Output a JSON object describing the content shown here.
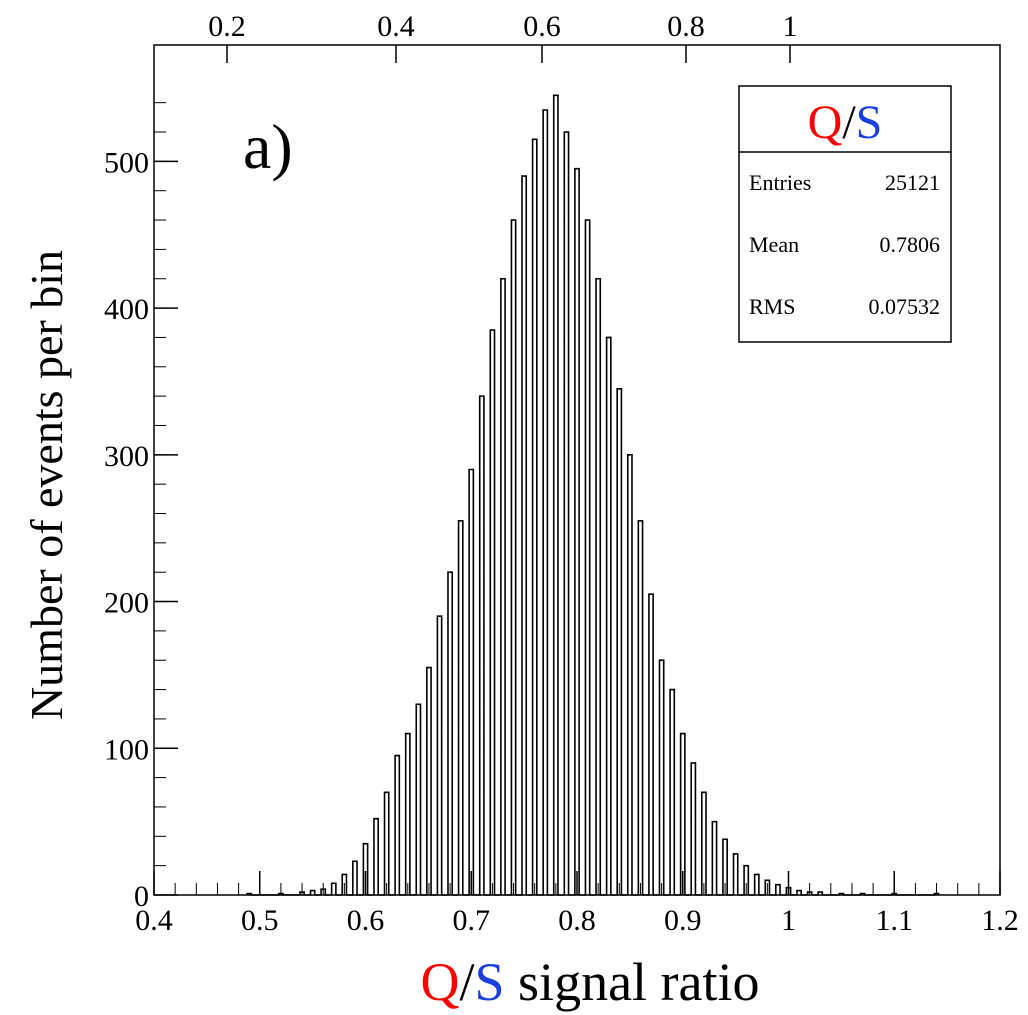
{
  "chart_data": {
    "type": "histogram",
    "panel_label": "a)",
    "xlabel": {
      "q": "Q",
      "slash": "/",
      "s": "S",
      "rest": " signal ratio"
    },
    "ylabel": "Number of events per bin",
    "xlim": [
      0.4,
      1.2
    ],
    "ylim": [
      0,
      550
    ],
    "x_ticks": [
      "0.4",
      "0.5",
      "0.6",
      "0.7",
      "0.8",
      "0.9",
      "1",
      "1.1",
      "1.2"
    ],
    "y_ticks": [
      "0",
      "100",
      "200",
      "300",
      "400",
      "500"
    ],
    "top_axis_ticks": [
      "0.2",
      "0.4",
      "0.6",
      "0.8",
      "1"
    ],
    "colors": {
      "q": "#ff0000",
      "s": "#1a3fe0",
      "line": "#000000"
    },
    "stats_box": {
      "title": {
        "q": "Q",
        "slash": "/",
        "s": "S"
      },
      "rows": [
        {
          "label": "Entries",
          "value": "25121"
        },
        {
          "label": "Mean",
          "value": "0.7806"
        },
        {
          "label": "RMS",
          "value": "0.07532"
        }
      ]
    },
    "series": [
      {
        "bin_width": 0.004,
        "bins": [
          {
            "x": 0.49,
            "y": 1
          },
          {
            "x": 0.52,
            "y": 1
          },
          {
            "x": 0.54,
            "y": 2
          },
          {
            "x": 0.55,
            "y": 3
          },
          {
            "x": 0.56,
            "y": 4
          },
          {
            "x": 0.57,
            "y": 8
          },
          {
            "x": 0.58,
            "y": 14
          },
          {
            "x": 0.59,
            "y": 23
          },
          {
            "x": 0.6,
            "y": 35
          },
          {
            "x": 0.61,
            "y": 52
          },
          {
            "x": 0.62,
            "y": 70
          },
          {
            "x": 0.63,
            "y": 95
          },
          {
            "x": 0.64,
            "y": 110
          },
          {
            "x": 0.65,
            "y": 130
          },
          {
            "x": 0.66,
            "y": 155
          },
          {
            "x": 0.67,
            "y": 190
          },
          {
            "x": 0.68,
            "y": 220
          },
          {
            "x": 0.69,
            "y": 255
          },
          {
            "x": 0.7,
            "y": 290
          },
          {
            "x": 0.71,
            "y": 340
          },
          {
            "x": 0.72,
            "y": 385
          },
          {
            "x": 0.73,
            "y": 420
          },
          {
            "x": 0.74,
            "y": 460
          },
          {
            "x": 0.75,
            "y": 490
          },
          {
            "x": 0.76,
            "y": 515
          },
          {
            "x": 0.77,
            "y": 535
          },
          {
            "x": 0.78,
            "y": 545
          },
          {
            "x": 0.79,
            "y": 520
          },
          {
            "x": 0.8,
            "y": 495
          },
          {
            "x": 0.81,
            "y": 460
          },
          {
            "x": 0.82,
            "y": 420
          },
          {
            "x": 0.83,
            "y": 380
          },
          {
            "x": 0.84,
            "y": 345
          },
          {
            "x": 0.85,
            "y": 300
          },
          {
            "x": 0.86,
            "y": 255
          },
          {
            "x": 0.87,
            "y": 205
          },
          {
            "x": 0.88,
            "y": 160
          },
          {
            "x": 0.89,
            "y": 140
          },
          {
            "x": 0.9,
            "y": 110
          },
          {
            "x": 0.91,
            "y": 90
          },
          {
            "x": 0.92,
            "y": 70
          },
          {
            "x": 0.93,
            "y": 50
          },
          {
            "x": 0.94,
            "y": 38
          },
          {
            "x": 0.95,
            "y": 28
          },
          {
            "x": 0.96,
            "y": 20
          },
          {
            "x": 0.97,
            "y": 14
          },
          {
            "x": 0.98,
            "y": 10
          },
          {
            "x": 0.99,
            "y": 7
          },
          {
            "x": 1.0,
            "y": 5
          },
          {
            "x": 1.01,
            "y": 3
          },
          {
            "x": 1.02,
            "y": 2
          },
          {
            "x": 1.03,
            "y": 2
          },
          {
            "x": 1.05,
            "y": 1
          },
          {
            "x": 1.07,
            "y": 1
          },
          {
            "x": 1.1,
            "y": 1
          },
          {
            "x": 1.14,
            "y": 1
          }
        ]
      }
    ]
  }
}
